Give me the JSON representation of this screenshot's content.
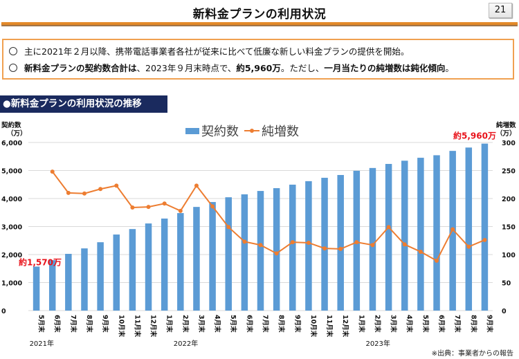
{
  "page": {
    "title": "新料金プランの利用状況",
    "page_number": "21"
  },
  "summary": {
    "line1": "主に2021年２月以降、携帯電話事業者各社が従来に比べて低廉な新しい料金プランの提供を開始。",
    "line2_parts": [
      {
        "text": "新料金プランの契約数合計は",
        "bold": true
      },
      {
        "text": "、2023年９月末時点で、",
        "bold": false
      },
      {
        "text": "約5,960万",
        "bold": true
      },
      {
        "text": "。ただし、",
        "bold": false
      },
      {
        "text": "一月当たりの純増数は鈍化傾向",
        "bold": true
      },
      {
        "text": "。",
        "bold": false
      }
    ]
  },
  "section_heading": "●新料金プランの利用状況の推移",
  "left_axis_title": [
    "契約数",
    "（万）"
  ],
  "right_axis_title": [
    "純増数",
    "（万）"
  ],
  "source_note": "※出典：事業者からの報告",
  "colors": {
    "bar": "#5b9bd5",
    "line": "#ed7d31",
    "annotation": "#e8121a",
    "section_bg": "#1a2a5e",
    "accent": "#e38a2a"
  },
  "chart_data": {
    "type": "bar+line",
    "title": "",
    "legend": [
      "契約数",
      "純増数"
    ],
    "legend_position": "top-center",
    "categories": [
      "5月末",
      "6月末",
      "7月末",
      "8月末",
      "9月末",
      "10月末",
      "11月末",
      "12月末",
      "1月末",
      "2月末",
      "3月末",
      "4月末",
      "5月末",
      "6月末",
      "7月末",
      "8月末",
      "9月末",
      "10月末",
      "11月末",
      "12月末",
      "1月末",
      "2月末",
      "3月末",
      "4月末",
      "5月末",
      "6月末",
      "7月末",
      "8月末",
      "9月末"
    ],
    "year_labels": [
      {
        "label": "2021年",
        "index": 0
      },
      {
        "label": "2022年",
        "index": 9
      },
      {
        "label": "2023年",
        "index": 21
      }
    ],
    "series": [
      {
        "name": "契約数",
        "type": "bar",
        "axis": "left",
        "values": [
          1570,
          1800,
          2025,
          2220,
          2440,
          2715,
          2910,
          3110,
          3285,
          3480,
          3700,
          3875,
          4045,
          4150,
          4270,
          4370,
          4495,
          4620,
          4740,
          4840,
          4990,
          5090,
          5235,
          5350,
          5455,
          5545,
          5700,
          5820,
          5960
        ]
      },
      {
        "name": "純増数",
        "type": "line",
        "axis": "right",
        "values": [
          null,
          248,
          210,
          209,
          217,
          223,
          184,
          185,
          191,
          178,
          223,
          186,
          149,
          123,
          117,
          102,
          122,
          121,
          111,
          110,
          122,
          117,
          149,
          118,
          105,
          89,
          145,
          114,
          126
        ]
      }
    ],
    "left_axis": {
      "label": "契約数（万）",
      "min": 0,
      "max": 6000,
      "ticks": [
        "0",
        "1,000",
        "2,000",
        "3,000",
        "4,000",
        "5,000",
        "6,000"
      ]
    },
    "right_axis": {
      "label": "純増数（万）",
      "min": 0,
      "max": 300,
      "ticks": [
        "0",
        "50",
        "100",
        "150",
        "200",
        "250",
        "300"
      ]
    },
    "grid": true,
    "annotations": [
      {
        "text": "約1,570万",
        "index": 0
      },
      {
        "text": "約5,960万",
        "index": 28
      }
    ]
  }
}
